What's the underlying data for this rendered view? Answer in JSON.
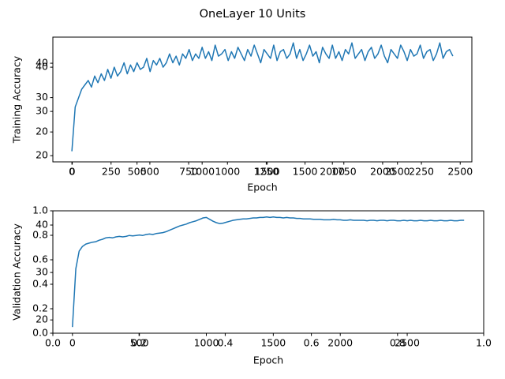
{
  "figure_title": "OneLayer 10 Units",
  "chart_data": [
    {
      "type": "line",
      "xlabel": "Epoch",
      "ylabel": "Training Accuracy",
      "x": [
        0,
        25,
        50,
        75,
        100,
        125,
        150,
        175,
        200,
        225,
        250,
        275,
        300,
        325,
        350,
        375,
        400,
        425,
        450,
        475,
        500,
        525,
        550,
        575,
        600,
        625,
        650,
        675,
        700,
        725,
        750,
        775,
        800,
        825,
        850,
        875,
        900,
        925,
        950,
        975,
        1000,
        1025,
        1050,
        1075,
        1100,
        1125,
        1150,
        1175,
        1200,
        1225,
        1250,
        1275,
        1300,
        1325,
        1350,
        1375,
        1400,
        1425,
        1450,
        1475,
        1500,
        1525,
        1550,
        1575,
        1600,
        1625,
        1650,
        1675,
        1700,
        1725,
        1750,
        1775,
        1800,
        1825,
        1850,
        1875,
        1900,
        1925,
        1950,
        1975,
        2000,
        2025,
        2050,
        2075,
        2100,
        2125,
        2150,
        2175,
        2200,
        2225,
        2250,
        2275,
        2300,
        2325,
        2350,
        2375,
        2400,
        2425,
        2450,
        2475,
        2500,
        2525,
        2550,
        2575,
        2600,
        2625,
        2650,
        2675,
        2700,
        2725,
        2750,
        2775,
        2800,
        2825,
        2850,
        2875,
        2900,
        2925
      ],
      "series": [
        {
          "color": "#1f77b4",
          "values": [
            21,
            31,
            33,
            35,
            36,
            37,
            35.5,
            38,
            36.5,
            38.5,
            37,
            39.5,
            37.5,
            40,
            38,
            39,
            41,
            38.5,
            40.5,
            39,
            41,
            39.5,
            40,
            42,
            39,
            41.5,
            40.5,
            42,
            40,
            41,
            43,
            41,
            42.5,
            40.5,
            43,
            42,
            44,
            41.5,
            43,
            42,
            44.5,
            42,
            43.5,
            41.5,
            45,
            42.5,
            43,
            44,
            41.5,
            43.5,
            42,
            44.5,
            43,
            41.5,
            44,
            42.5,
            45,
            43,
            41,
            44,
            43,
            42,
            45,
            41.5,
            43.5,
            44,
            42,
            43,
            45.5,
            42,
            44,
            41.5,
            43,
            45,
            42.5,
            43.5,
            41,
            44.5,
            43,
            42,
            45,
            42,
            43.5,
            41.5,
            44,
            43,
            45.5,
            42,
            43,
            44,
            41.5,
            43.5,
            44.5,
            42,
            43,
            45,
            42.5,
            41,
            44,
            43,
            42,
            45,
            43.5,
            41.5,
            44,
            42.5,
            43,
            45,
            42,
            43.5,
            44,
            41.5,
            43,
            45.5,
            42,
            43.5,
            44,
            42.5
          ]
        }
      ],
      "xlim": [
        -146.25,
        3071.25
      ],
      "ylim": [
        18.6,
        46.8
      ],
      "xticks": [
        0,
        500,
        1000,
        1500,
        2000,
        2500
      ],
      "yticks": [
        20,
        30,
        40
      ],
      "twin_axes": {
        "xlim": [
          -125,
          2575
        ],
        "ylim": [
          11.3,
          47.6
        ],
        "xticks": [
          0,
          250,
          500,
          750,
          1000,
          1250,
          1500,
          1750,
          2000,
          2250,
          2500
        ],
        "yticks": [
          20,
          30,
          40
        ]
      }
    },
    {
      "type": "line",
      "xlabel": "Epoch",
      "ylabel": "Validation Accuracy",
      "x": [
        0,
        25,
        50,
        75,
        100,
        125,
        150,
        175,
        200,
        225,
        250,
        275,
        300,
        325,
        350,
        375,
        400,
        425,
        450,
        475,
        500,
        525,
        550,
        575,
        600,
        625,
        650,
        675,
        700,
        725,
        750,
        775,
        800,
        825,
        850,
        875,
        900,
        925,
        950,
        975,
        1000,
        1025,
        1050,
        1075,
        1100,
        1125,
        1150,
        1175,
        1200,
        1225,
        1250,
        1275,
        1300,
        1325,
        1350,
        1375,
        1400,
        1425,
        1450,
        1475,
        1500,
        1525,
        1550,
        1575,
        1600,
        1625,
        1650,
        1675,
        1700,
        1725,
        1750,
        1775,
        1800,
        1825,
        1850,
        1875,
        1900,
        1925,
        1950,
        1975,
        2000,
        2025,
        2050,
        2075,
        2100,
        2125,
        2150,
        2175,
        2200,
        2225,
        2250,
        2275,
        2300,
        2325,
        2350,
        2375,
        2400,
        2425,
        2450,
        2475,
        2500,
        2525,
        2550,
        2575,
        2600,
        2625,
        2650,
        2675,
        2700,
        2725,
        2750,
        2775,
        2800,
        2825,
        2850,
        2875,
        2900,
        2925
      ],
      "series": [
        {
          "color": "#1f77b4",
          "values": [
            18.5,
            30.8,
            34.5,
            35.5,
            36,
            36.2,
            36.4,
            36.5,
            36.8,
            37,
            37.3,
            37.4,
            37.3,
            37.5,
            37.6,
            37.5,
            37.6,
            37.8,
            37.7,
            37.8,
            37.9,
            37.8,
            38,
            38.1,
            38,
            38.2,
            38.3,
            38.4,
            38.6,
            38.9,
            39.2,
            39.5,
            39.8,
            40,
            40.2,
            40.5,
            40.7,
            40.9,
            41.2,
            41.5,
            41.6,
            41.2,
            40.8,
            40.5,
            40.3,
            40.4,
            40.6,
            40.8,
            41,
            41.1,
            41.2,
            41.3,
            41.3,
            41.4,
            41.5,
            41.5,
            41.6,
            41.6,
            41.7,
            41.6,
            41.7,
            41.6,
            41.6,
            41.5,
            41.6,
            41.5,
            41.5,
            41.4,
            41.4,
            41.3,
            41.3,
            41.3,
            41.2,
            41.2,
            41.2,
            41.1,
            41.1,
            41.1,
            41.2,
            41.1,
            41.1,
            41,
            41,
            41.1,
            41,
            41,
            41,
            41,
            40.9,
            41,
            41,
            40.9,
            41,
            41,
            40.9,
            41,
            41,
            40.9,
            40.9,
            41,
            40.9,
            41,
            40.9,
            40.9,
            41,
            40.9,
            40.9,
            41,
            40.9,
            40.9,
            41,
            40.9,
            40.9,
            41,
            40.9,
            40.9,
            41,
            41
          ]
        }
      ],
      "xlim": [
        -146.25,
        3071.25
      ],
      "ylim": [
        17.2,
        43
      ],
      "xticks": [
        0,
        500,
        1000,
        1500,
        2000,
        2500
      ],
      "yticks": [
        20,
        30,
        40
      ],
      "twin_axes": {
        "xlim": [
          0,
          1
        ],
        "ylim": [
          0,
          1
        ],
        "xticks": [
          {
            "value": 0,
            "label": "0.0"
          },
          0.2,
          0.4,
          0.6,
          0.8,
          {
            "value": 1,
            "label": "1.0"
          }
        ],
        "yticks": [
          {
            "value": 0,
            "label": "0.0"
          },
          0.2,
          0.4,
          0.6,
          0.8,
          {
            "value": 1,
            "label": "1.0"
          }
        ]
      }
    }
  ]
}
